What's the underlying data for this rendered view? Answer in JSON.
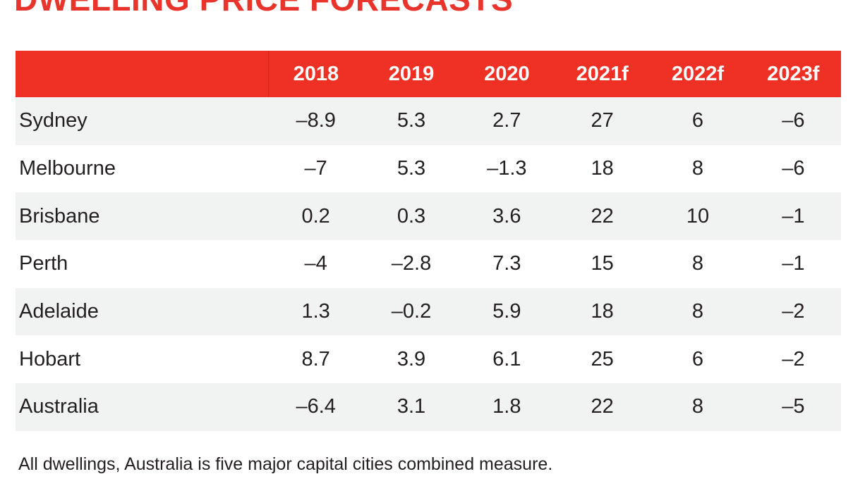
{
  "title": "DWELLING PRICE FORECASTS",
  "footnote": "All dwellings, Australia is five major capital cities combined measure.",
  "colors": {
    "header_bg": "#ee3124",
    "title": "#e8342a",
    "row_shade": "#f1f2f2"
  },
  "chart_data": {
    "type": "table",
    "title": "DWELLING PRICE FORECASTS",
    "columns": [
      "",
      "2018",
      "2019",
      "2020",
      "2021f",
      "2022f",
      "2023f"
    ],
    "rows": [
      {
        "city": "Sydney",
        "values": [
          "–8.9",
          "5.3",
          "2.7",
          "27",
          "6",
          "–6"
        ]
      },
      {
        "city": "Melbourne",
        "values": [
          "–7",
          "5.3",
          "–1.3",
          "18",
          "8",
          "–6"
        ]
      },
      {
        "city": "Brisbane",
        "values": [
          "0.2",
          "0.3",
          "3.6",
          "22",
          "10",
          "–1"
        ]
      },
      {
        "city": "Perth",
        "values": [
          "–4",
          "–2.8",
          "7.3",
          "15",
          "8",
          "–1"
        ]
      },
      {
        "city": "Adelaide",
        "values": [
          "1.3",
          "–0.2",
          "5.9",
          "18",
          "8",
          "–2"
        ]
      },
      {
        "city": "Hobart",
        "values": [
          "8.7",
          "3.9",
          "6.1",
          "25",
          "6",
          "–2"
        ]
      },
      {
        "city": "Australia",
        "values": [
          "–6.4",
          "3.1",
          "1.8",
          "22",
          "8",
          "–5"
        ]
      }
    ]
  }
}
